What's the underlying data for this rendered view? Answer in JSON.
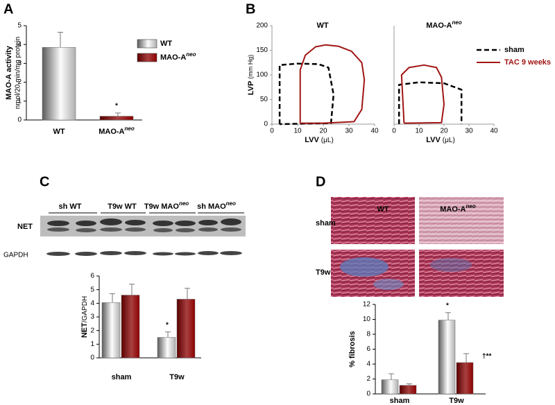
{
  "panel_labels": [
    "A",
    "B",
    "C",
    "D"
  ],
  "blot": {
    "lanes": [
      {
        "text": "sh WT"
      },
      {
        "text": "T9w WT"
      },
      {
        "text": "T9w MAO",
        "sup": "neo"
      },
      {
        "text": "sh MAO",
        "sup": "neo"
      }
    ],
    "rows": [
      "NET",
      "GAPDH"
    ]
  },
  "histology": {
    "columns": [
      {
        "text": "WT"
      },
      {
        "text": "MAO-A",
        "sup": "neo"
      }
    ],
    "rows": [
      "sham",
      "T9w"
    ]
  },
  "chart_data": [
    {
      "type": "bar",
      "ylabel": "MAO-A activity",
      "ylabel_unit": "nmol/20 min/mg protein",
      "categories": [
        "WT",
        "MAO-A"
      ],
      "category_superscripts": [
        null,
        "neo"
      ],
      "values": [
        3.85,
        0.2
      ],
      "errors": [
        0.8,
        0.17
      ],
      "colors": [
        "#8c8c8c",
        "#8b0000"
      ],
      "ylim": [
        0,
        5
      ],
      "yticks": [
        0,
        1,
        2,
        3,
        4,
        5
      ],
      "annotations": [
        "*"
      ],
      "legend": true
    },
    {
      "type": "line",
      "title": "WT",
      "ylabel": "LVP",
      "ylabel_unit": "(mm Hg)",
      "xlabel": "LVV",
      "xlabel_unit": "(μL)",
      "xlim": [
        0,
        40
      ],
      "xticks": [
        0,
        10,
        20,
        30,
        40
      ],
      "ylim": [
        0,
        200
      ],
      "yticks": [
        0,
        50,
        100,
        150,
        200
      ],
      "series": [
        {
          "color": "#000000",
          "dashed": true,
          "x": [
            3,
            3,
            10,
            18,
            22,
            24,
            23,
            3
          ],
          "values": [
            0,
            120,
            123,
            122,
            115,
            60,
            2,
            0
          ]
        },
        {
          "color": "#a01414",
          "dashed": false,
          "x": [
            11,
            11,
            13,
            17,
            21,
            26,
            31,
            35,
            36,
            35,
            32,
            20,
            11
          ],
          "values": [
            2,
            110,
            140,
            157,
            161,
            158,
            148,
            125,
            90,
            30,
            5,
            2,
            2
          ]
        }
      ]
    },
    {
      "type": "line",
      "title": "MAO-A",
      "title_superscript": "neo",
      "xlabel": "LVV",
      "xlabel_unit": "(μL)",
      "xlim": [
        0,
        40
      ],
      "xticks": [
        0,
        10,
        20,
        30,
        40
      ],
      "ylim": [
        0,
        200
      ],
      "series": [
        {
          "name": "sham",
          "color": "#000000",
          "dashed": true,
          "x": [
            2,
            2,
            10,
            20,
            27,
            27
          ],
          "values": [
            0,
            80,
            85,
            83,
            70,
            0
          ]
        },
        {
          "name": "TAC 9 weeks",
          "color": "#a01414",
          "dashed": false,
          "x": [
            4,
            3,
            6,
            12,
            17,
            19,
            20,
            19,
            4
          ],
          "values": [
            2,
            100,
            115,
            120,
            115,
            95,
            40,
            3,
            2
          ]
        }
      ],
      "legend": true
    },
    {
      "type": "bar",
      "ylabel": "NET",
      "ylabel_unit": "/GAPDH",
      "categories": [
        "sham",
        "T9w"
      ],
      "series": [
        {
          "color": "#8c8c8c",
          "values": [
            4.05,
            1.5
          ],
          "errors": [
            0.65,
            0.4
          ]
        },
        {
          "color": "#8b0000",
          "values": [
            4.6,
            4.3
          ],
          "errors": [
            0.8,
            0.8
          ]
        }
      ],
      "ylim": [
        0,
        6
      ],
      "yticks": [
        0,
        1,
        2,
        3,
        4,
        5,
        6
      ],
      "annotations": [
        "*"
      ]
    },
    {
      "type": "bar",
      "ylabel": "% fibrosis",
      "categories": [
        "sham",
        "T9w"
      ],
      "series": [
        {
          "color": "#8c8c8c",
          "values": [
            1.9,
            9.9
          ],
          "errors": [
            0.8,
            1.0
          ]
        },
        {
          "color": "#8b0000",
          "values": [
            1.15,
            4.2
          ],
          "errors": [
            0.2,
            1.2
          ]
        }
      ],
      "ylim": [
        0,
        12
      ],
      "yticks": [
        0,
        2,
        4,
        6,
        8,
        10,
        12
      ],
      "annotations": [
        "*",
        "†**"
      ]
    }
  ]
}
